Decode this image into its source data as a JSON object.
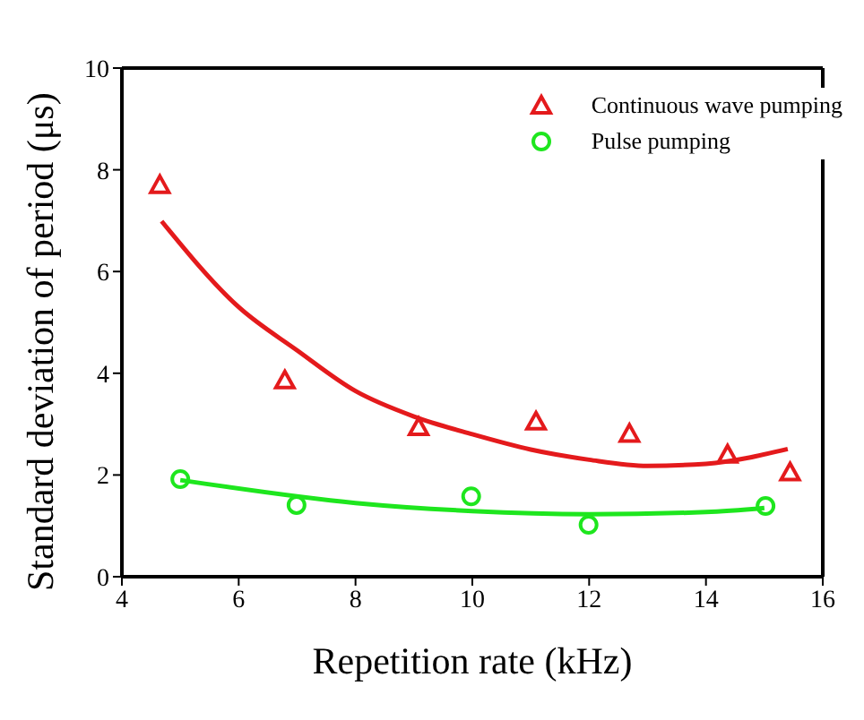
{
  "chart_data": {
    "type": "scatter",
    "xlabel": "Repetition rate (kHz)",
    "ylabel": "Standard deviation of period (μs)",
    "xlim": [
      4,
      16
    ],
    "xticks": [
      4,
      6,
      8,
      10,
      12,
      14,
      16
    ],
    "ylim": [
      0,
      10
    ],
    "yticks": [
      0,
      2,
      4,
      6,
      8,
      10
    ],
    "grid": false,
    "legend": "top right",
    "series": [
      {
        "name": "Continuous wave pumping",
        "marker": "triangle",
        "color": "#e41a1c",
        "x": [
          4.65,
          6.79,
          9.08,
          11.09,
          12.69,
          14.37,
          15.44
        ],
        "values": [
          7.7,
          3.86,
          2.94,
          3.05,
          2.81,
          2.4,
          2.05
        ]
      },
      {
        "name": "Pulse pumping",
        "marker": "circle",
        "color": "#1ee61e",
        "x": [
          5.0,
          6.99,
          9.98,
          11.99,
          15.02
        ],
        "values": [
          1.92,
          1.41,
          1.58,
          1.02,
          1.39
        ]
      },
      {
        "type": "line",
        "color": "#e41a1c",
        "x": [
          4.68,
          6,
          7,
          8,
          9,
          10,
          11,
          12,
          13,
          14,
          15.4
        ],
        "values": [
          6.99,
          5.3,
          4.45,
          3.65,
          3.15,
          2.8,
          2.5,
          2.3,
          2.18,
          2.22,
          2.51
        ]
      },
      {
        "type": "line",
        "color": "#1ee61e",
        "x": [
          5.0,
          8,
          10,
          12,
          14,
          15
        ],
        "values": [
          1.9,
          1.45,
          1.29,
          1.23,
          1.27,
          1.35
        ]
      }
    ]
  }
}
